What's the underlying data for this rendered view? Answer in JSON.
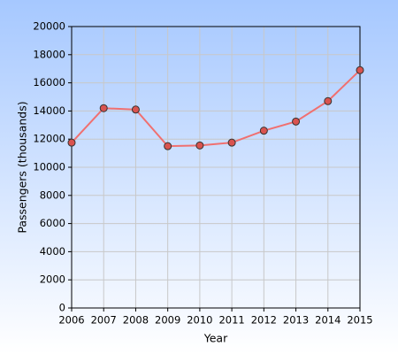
{
  "chart_data": {
    "type": "line",
    "x_label": "Year",
    "y_label": "Passengers (thousands)",
    "x": [
      2006,
      2007,
      2008,
      2009,
      2010,
      2011,
      2012,
      2013,
      2014,
      2015
    ],
    "series": [
      {
        "color": "#f07070",
        "marker_color": "#d9534f",
        "values": [
          11750,
          14200,
          14100,
          11500,
          11550,
          11750,
          12600,
          13250,
          14700,
          16900
        ]
      }
    ],
    "xlim": [
      2006,
      2015
    ],
    "xticks": [
      2006,
      2007,
      2008,
      2009,
      2010,
      2011,
      2012,
      2013,
      2014,
      2015
    ],
    "ylim": [
      0,
      20000
    ],
    "yticks": [
      0,
      2000,
      4000,
      6000,
      8000,
      10000,
      12000,
      14000,
      16000,
      18000,
      20000
    ],
    "grid": true
  }
}
